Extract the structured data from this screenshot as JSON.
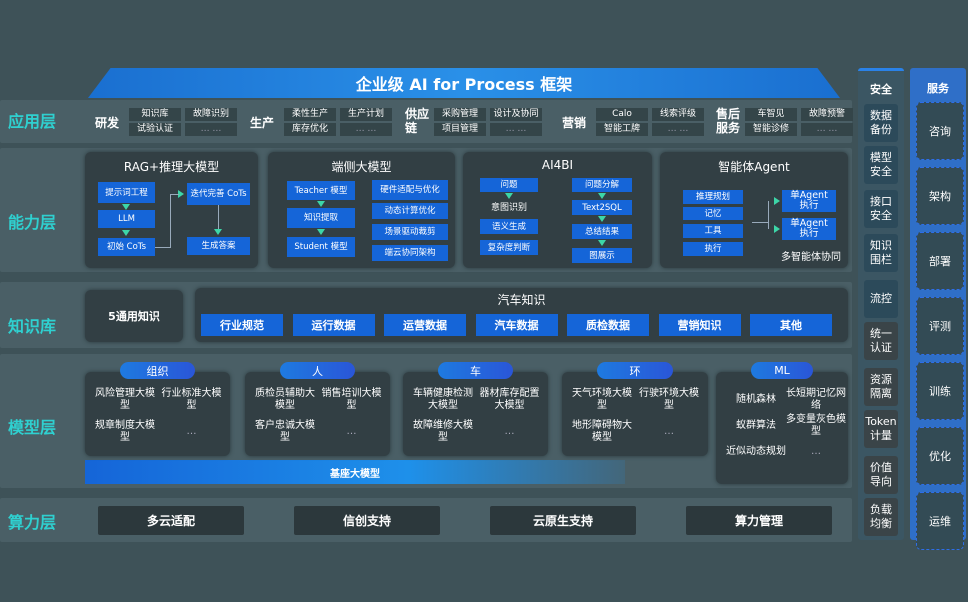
{
  "title": "企业级 AI for Process 框架",
  "layers": [
    "应用层",
    "能力层",
    "知识库",
    "模型层",
    "算力层"
  ],
  "app": [
    {
      "name": "研发",
      "tags": [
        "知识库",
        "试验认证",
        "故障识别",
        "… …"
      ]
    },
    {
      "name": "生产",
      "tags": [
        "柔性生产",
        "库存优化",
        "生产计划",
        "… …"
      ]
    },
    {
      "name": "供应链",
      "tags": [
        "采购管理",
        "项目管理",
        "设计及协同",
        "… …"
      ]
    },
    {
      "name": "营销",
      "tags": [
        "Calo",
        "智能工牌",
        "线索评级",
        "… …"
      ]
    },
    {
      "name": "售后服务",
      "tags": [
        "车智见",
        "智能诊修",
        "故障预警",
        "… …"
      ]
    }
  ],
  "cap": {
    "rag": {
      "title": "RAG+推理大模型",
      "items": [
        "提示词工程",
        "LLM",
        "初始 CoTs",
        "迭代完善 CoTs",
        "生成答案"
      ]
    },
    "edge": {
      "title": "端侧大模型",
      "items": [
        "Teacher 模型",
        "知识提取",
        "Student 模型",
        "硬件适配与优化",
        "动态计算优化",
        "场景驱动裁剪",
        "端云协同架构"
      ]
    },
    "bi": {
      "title": "AI4BI",
      "items": [
        "问题",
        "意图识别",
        "语义生成",
        "复杂度判断",
        "问题分解",
        "Text2SQL",
        "总结结果",
        "图展示"
      ]
    },
    "agent": {
      "title": "智能体Agent",
      "items": [
        "推理规划",
        "记忆",
        "工具",
        "执行",
        "单Agent执行",
        "单Agent执行",
        "多智能体协同"
      ]
    }
  },
  "knowledge": {
    "general": "5通用知识",
    "auto_title": "汽车知识",
    "items": [
      "行业规范",
      "运行数据",
      "运营数据",
      "汽车数据",
      "质检数据",
      "营销知识",
      "其他"
    ]
  },
  "models": [
    {
      "name": "组织",
      "items": [
        "风险管理大模型",
        "行业标准大模型",
        "规章制度大模型",
        "…"
      ]
    },
    {
      "name": "人",
      "items": [
        "质检员辅助大模型",
        "销售培训大模型",
        "客户忠诚大模型",
        "…"
      ]
    },
    {
      "name": "车",
      "items": [
        "车辆健康检测大模型",
        "器材库存配置大模型",
        "故障维修大模型",
        "…"
      ]
    },
    {
      "name": "环",
      "items": [
        "天气环境大模型",
        "行驶环境大模型",
        "地形障碍物大模型",
        "…"
      ]
    },
    {
      "name": "ML",
      "items": [
        "随机森林",
        "长短期记忆网络",
        "蚁群算法",
        "多变量灰色模型",
        "近似动态规划",
        "…"
      ]
    }
  ],
  "base_model": "基座大模型",
  "compute": [
    "多云适配",
    "信创支持",
    "云原生支持",
    "算力管理"
  ],
  "security": {
    "title": "安全",
    "items": [
      "数据备份",
      "模型安全",
      "接口安全",
      "知识围栏",
      "流控",
      "统一认证",
      "资源隔离",
      "Token计量",
      "价值导向",
      "负载均衡"
    ]
  },
  "service": {
    "title": "服务",
    "items": [
      "咨询",
      "架构",
      "部署",
      "评测",
      "训练",
      "优化",
      "运维"
    ]
  },
  "colors": {
    "accent": "#1565d8",
    "layer_label": "#2fd0d0",
    "background": "#3e5258"
  }
}
